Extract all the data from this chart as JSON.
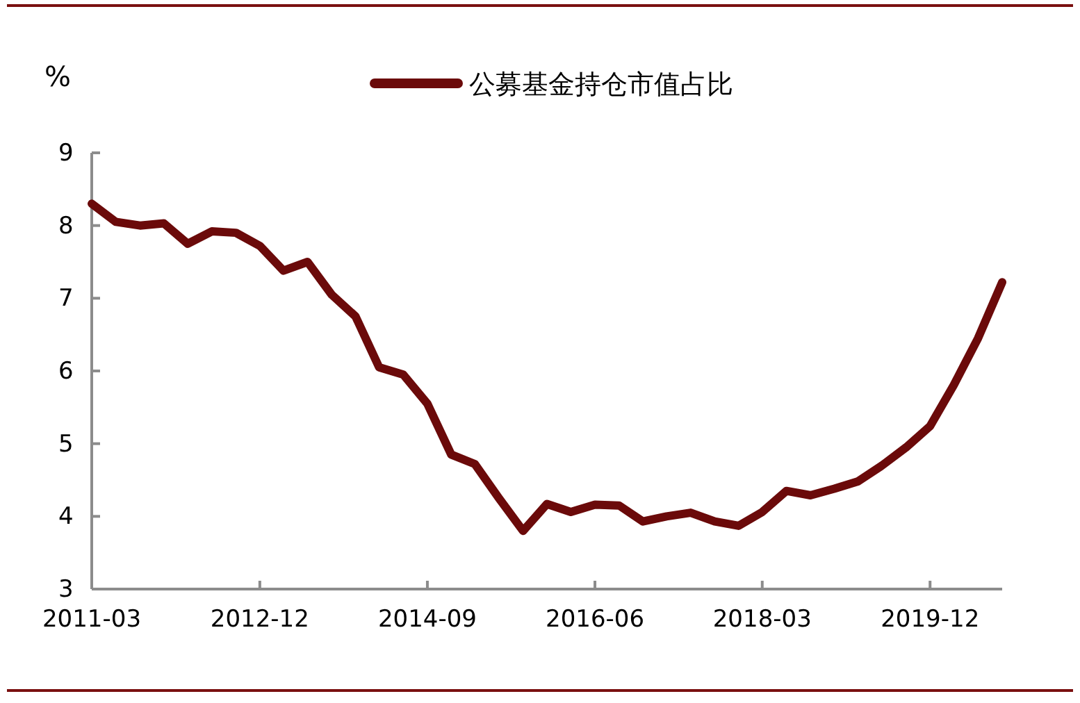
{
  "chart_data": {
    "type": "line",
    "ylabel": "%",
    "legend": "top",
    "x": [
      "2011-03",
      "2011-06",
      "2011-09",
      "2011-12",
      "2012-03",
      "2012-06",
      "2012-09",
      "2012-12",
      "2013-03",
      "2013-06",
      "2013-09",
      "2013-12",
      "2014-03",
      "2014-06",
      "2014-09",
      "2014-12",
      "2015-03",
      "2015-06",
      "2015-09",
      "2015-12",
      "2016-03",
      "2016-06",
      "2016-09",
      "2016-12",
      "2017-03",
      "2017-06",
      "2017-09",
      "2017-12",
      "2018-03",
      "2018-06",
      "2018-09",
      "2018-12",
      "2019-03",
      "2019-06",
      "2019-09",
      "2019-12",
      "2020-03",
      "2020-06",
      "2020-09"
    ],
    "series": [
      {
        "name": "公募基金持仓市值占比",
        "color": "#6b0a0a",
        "values": [
          8.3,
          8.05,
          8.0,
          8.03,
          7.75,
          7.92,
          7.9,
          7.72,
          7.38,
          7.5,
          7.05,
          6.75,
          6.05,
          5.95,
          5.55,
          4.85,
          4.72,
          4.25,
          3.8,
          4.17,
          4.06,
          4.16,
          4.15,
          3.93,
          4.0,
          4.05,
          3.93,
          3.87,
          4.06,
          4.35,
          4.29,
          4.38,
          4.48,
          4.7,
          4.95,
          5.24,
          5.81,
          6.45,
          7.22
        ]
      }
    ],
    "xlim": [
      "2011-03",
      "2020-09"
    ],
    "xticks": [
      "2011-03",
      "2012-12",
      "2014-09",
      "2016-06",
      "2018-03",
      "2019-12"
    ],
    "ylim": [
      3,
      9
    ],
    "yticks": [
      3,
      4,
      5,
      6,
      7,
      8,
      9
    ],
    "grid": false,
    "line_style": "solid",
    "marker": "none"
  }
}
